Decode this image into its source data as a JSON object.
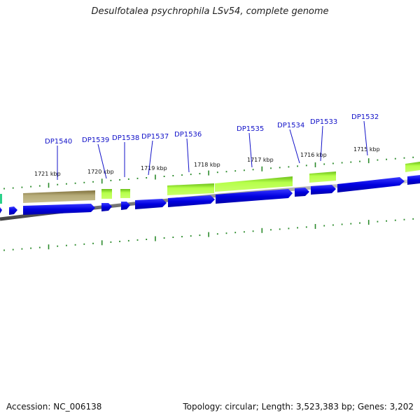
{
  "title": "Desulfotalea psychrophila LSv54, complete genome",
  "footer": {
    "accession": "Accession: NC_006138",
    "summary": "Topology: circular; Length: 3,523,383 bp; Genes: 3,202"
  },
  "genes": [
    {
      "id": "DP1540"
    },
    {
      "id": "DP1539"
    },
    {
      "id": "DP1538"
    },
    {
      "id": "DP1537"
    },
    {
      "id": "DP1536"
    },
    {
      "id": "DP1535"
    },
    {
      "id": "DP1534"
    },
    {
      "id": "DP1533"
    },
    {
      "id": "DP1532"
    }
  ],
  "kbp_ticks": [
    "1721 kbp",
    "1720 kbp",
    "1719 kbp",
    "1718 kbp",
    "1717 kbp",
    "1716 kbp",
    "1715 kbp"
  ],
  "colors": {
    "cds_forward": "#0a0ae6",
    "feature_green": "#9bef3a",
    "feature_olive": "#a99f6c",
    "tick_green": "#2a8a2a",
    "backbone": "#888888"
  }
}
